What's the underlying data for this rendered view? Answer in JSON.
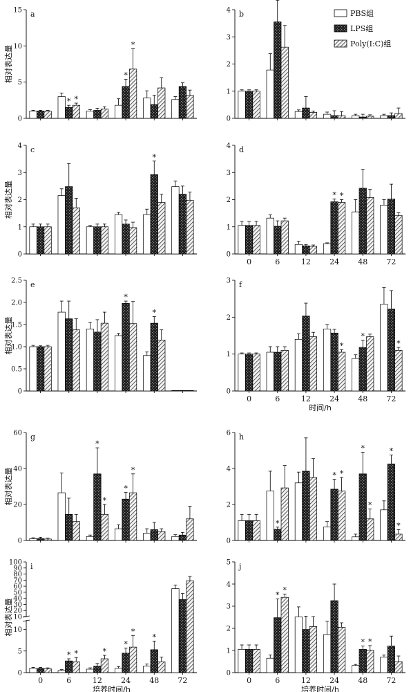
{
  "legend": {
    "items": [
      {
        "label": "PBS组",
        "pattern": "white"
      },
      {
        "label": "LPS组",
        "pattern": "dark"
      },
      {
        "label": "Poly(I:C)组",
        "pattern": "hatch"
      }
    ]
  },
  "ylabel": "相对表达量",
  "categories": [
    "0",
    "6",
    "12",
    "24",
    "48",
    "72"
  ],
  "chart_data": [
    {
      "panel": "a",
      "type": "bar",
      "ylim": [
        0,
        15
      ],
      "yticks": [
        0,
        5,
        10,
        15
      ],
      "ylabel": "相对表达量",
      "xlabel": "",
      "show_xticks": false,
      "series": [
        {
          "name": "PBS组",
          "values": [
            1.0,
            3.0,
            1.0,
            1.8,
            2.8,
            2.6
          ],
          "errors": [
            0.1,
            0.5,
            0.2,
            0.9,
            1.0,
            0.4
          ],
          "sig": [
            false,
            false,
            false,
            false,
            false,
            false
          ]
        },
        {
          "name": "LPS组",
          "values": [
            1.0,
            1.5,
            1.1,
            4.4,
            1.9,
            4.4
          ],
          "errors": [
            0.1,
            0.3,
            0.3,
            1.0,
            1.3,
            0.5
          ],
          "sig": [
            false,
            true,
            false,
            true,
            false,
            false
          ]
        },
        {
          "name": "Poly(I:C)组",
          "values": [
            1.0,
            1.8,
            1.3,
            6.8,
            4.2,
            3.2
          ],
          "errors": [
            0.1,
            0.3,
            0.3,
            2.8,
            1.4,
            0.7
          ],
          "sig": [
            false,
            true,
            false,
            true,
            false,
            false
          ]
        }
      ]
    },
    {
      "panel": "b",
      "type": "bar",
      "ylim": [
        0,
        4
      ],
      "yticks": [
        0,
        1,
        2,
        3,
        4
      ],
      "ylabel": "",
      "xlabel": "",
      "show_xticks": false,
      "series": [
        {
          "name": "PBS组",
          "values": [
            1.0,
            1.78,
            0.25,
            0.15,
            0.1,
            0.1
          ],
          "errors": [
            0.05,
            0.6,
            0.06,
            0.08,
            0.05,
            0.05
          ],
          "sig": [
            false,
            false,
            false,
            false,
            false,
            false
          ]
        },
        {
          "name": "LPS组",
          "values": [
            1.0,
            3.55,
            0.38,
            0.1,
            0.05,
            0.1
          ],
          "errors": [
            0.05,
            0.8,
            0.42,
            0.18,
            0.1,
            0.1
          ],
          "sig": [
            false,
            true,
            false,
            false,
            false,
            false
          ]
        },
        {
          "name": "Poly(I:C)组",
          "values": [
            1.0,
            2.62,
            0.22,
            0.1,
            0.08,
            0.18
          ],
          "errors": [
            0.05,
            0.8,
            0.05,
            0.15,
            0.05,
            0.2
          ],
          "sig": [
            false,
            false,
            false,
            false,
            false,
            false
          ]
        }
      ]
    },
    {
      "panel": "c",
      "type": "bar",
      "ylim": [
        0,
        4
      ],
      "yticks": [
        0,
        1,
        2,
        3,
        4
      ],
      "ylabel": "相对表达量",
      "xlabel": "",
      "show_xticks": false,
      "series": [
        {
          "name": "PBS组",
          "values": [
            1.0,
            2.15,
            1.0,
            1.45,
            1.45,
            2.48
          ],
          "errors": [
            0.1,
            0.25,
            0.05,
            0.08,
            0.2,
            0.2
          ],
          "sig": [
            false,
            false,
            false,
            false,
            false,
            false
          ]
        },
        {
          "name": "LPS组",
          "values": [
            1.0,
            2.48,
            1.0,
            1.1,
            2.92,
            2.2
          ],
          "errors": [
            0.1,
            0.85,
            0.1,
            0.15,
            0.5,
            0.3
          ],
          "sig": [
            false,
            false,
            false,
            false,
            true,
            false
          ]
        },
        {
          "name": "Poly(I:C)组",
          "values": [
            1.0,
            1.7,
            1.0,
            0.97,
            1.9,
            1.98
          ],
          "errors": [
            0.1,
            0.35,
            0.1,
            0.2,
            0.3,
            0.3
          ],
          "sig": [
            false,
            false,
            false,
            false,
            false,
            false
          ]
        }
      ]
    },
    {
      "panel": "d",
      "type": "bar",
      "ylim": [
        0,
        4
      ],
      "yticks": [
        0,
        1,
        2,
        3,
        4
      ],
      "ylabel": "",
      "xlabel": "",
      "show_xticks": true,
      "series": [
        {
          "name": "PBS组",
          "values": [
            1.05,
            1.32,
            0.35,
            0.38,
            1.55,
            1.8
          ],
          "errors": [
            0.15,
            0.12,
            0.12,
            0.03,
            0.45,
            0.2
          ],
          "sig": [
            false,
            false,
            false,
            false,
            false,
            false
          ]
        },
        {
          "name": "LPS组",
          "values": [
            1.05,
            1.02,
            0.3,
            1.92,
            2.42,
            2.02
          ],
          "errors": [
            0.15,
            0.2,
            0.05,
            0.1,
            0.7,
            0.55
          ],
          "sig": [
            false,
            false,
            false,
            true,
            false,
            false
          ]
        },
        {
          "name": "Poly(I:C)组",
          "values": [
            1.05,
            1.22,
            0.28,
            1.9,
            2.08,
            1.42
          ],
          "errors": [
            0.15,
            0.1,
            0.05,
            0.1,
            0.3,
            0.1
          ],
          "sig": [
            false,
            false,
            false,
            true,
            false,
            false
          ]
        }
      ]
    },
    {
      "panel": "e",
      "type": "bar",
      "ylim": [
        0,
        2.5
      ],
      "yticks": [
        0,
        0.5,
        1.0,
        1.5,
        2.0,
        2.5
      ],
      "ylabel": "相对表达量",
      "xlabel": "",
      "show_xticks": false,
      "series": [
        {
          "name": "PBS组",
          "values": [
            1.0,
            1.78,
            1.4,
            1.25,
            0.8,
            0.01
          ],
          "errors": [
            0.03,
            0.25,
            0.15,
            0.05,
            0.08,
            0.0
          ],
          "sig": [
            false,
            false,
            false,
            false,
            false,
            false
          ]
        },
        {
          "name": "LPS组",
          "values": [
            1.0,
            1.63,
            1.33,
            1.98,
            1.53,
            0.01
          ],
          "errors": [
            0.02,
            0.4,
            0.28,
            0.05,
            0.15,
            0.0
          ],
          "sig": [
            false,
            false,
            false,
            true,
            true,
            false
          ]
        },
        {
          "name": "Poly(I:C)组",
          "values": [
            1.0,
            1.38,
            1.53,
            1.52,
            1.15,
            0.01
          ],
          "errors": [
            0.03,
            0.25,
            0.25,
            0.5,
            0.23,
            0.0
          ],
          "sig": [
            false,
            false,
            false,
            false,
            false,
            false
          ]
        }
      ]
    },
    {
      "panel": "f",
      "type": "bar",
      "ylim": [
        0,
        3
      ],
      "yticks": [
        0,
        1,
        2,
        3
      ],
      "ylabel": "",
      "xlabel": "时间/h",
      "show_xticks": true,
      "series": [
        {
          "name": "PBS组",
          "values": [
            1.0,
            1.05,
            1.4,
            1.68,
            0.88,
            2.35
          ],
          "errors": [
            0.03,
            0.15,
            0.15,
            0.12,
            0.1,
            0.45
          ],
          "sig": [
            false,
            false,
            false,
            false,
            false,
            false
          ]
        },
        {
          "name": "LPS组",
          "values": [
            1.0,
            1.05,
            2.03,
            1.57,
            1.18,
            2.22
          ],
          "errors": [
            0.03,
            0.15,
            0.35,
            0.1,
            0.2,
            0.5
          ],
          "sig": [
            false,
            false,
            false,
            false,
            true,
            false
          ]
        },
        {
          "name": "Poly(I:C)组",
          "values": [
            1.0,
            1.1,
            1.47,
            1.05,
            1.47,
            1.1
          ],
          "errors": [
            0.03,
            0.1,
            0.12,
            0.07,
            0.07,
            0.08
          ],
          "sig": [
            false,
            false,
            false,
            true,
            false,
            true
          ]
        }
      ]
    },
    {
      "panel": "g",
      "type": "bar",
      "ylim": [
        0,
        60
      ],
      "yticks": [
        0,
        20,
        40,
        60
      ],
      "ylabel": "相对表达量",
      "xlabel": "",
      "show_xticks": false,
      "series": [
        {
          "name": "PBS组",
          "values": [
            1.0,
            26.5,
            2.2,
            6.5,
            4.0,
            2.2
          ],
          "errors": [
            0.5,
            11.0,
            0.8,
            2.2,
            2.5,
            1.0
          ],
          "sig": [
            false,
            false,
            false,
            false,
            false,
            false
          ]
        },
        {
          "name": "LPS组",
          "values": [
            1.0,
            14.5,
            37.0,
            23.0,
            6.0,
            3.0
          ],
          "errors": [
            0.8,
            9.0,
            14.5,
            3.8,
            4.0,
            1.5
          ],
          "sig": [
            false,
            false,
            true,
            true,
            false,
            false
          ]
        },
        {
          "name": "Poly(I:C)组",
          "values": [
            0.8,
            10.5,
            14.5,
            26.5,
            5.0,
            12.0
          ],
          "errors": [
            0.5,
            4.0,
            5.5,
            10.5,
            1.5,
            7.0
          ],
          "sig": [
            false,
            false,
            true,
            true,
            false,
            false
          ]
        }
      ]
    },
    {
      "panel": "h",
      "type": "bar",
      "ylim": [
        0,
        6
      ],
      "yticks": [
        0,
        2,
        4,
        6
      ],
      "ylabel": "",
      "xlabel": "",
      "show_xticks": false,
      "series": [
        {
          "name": "PBS组",
          "values": [
            1.1,
            2.75,
            3.2,
            0.75,
            0.2,
            1.7
          ],
          "errors": [
            0.35,
            1.1,
            0.6,
            0.3,
            0.15,
            0.5
          ],
          "sig": [
            false,
            false,
            false,
            false,
            false,
            false
          ]
        },
        {
          "name": "LPS组",
          "values": [
            1.1,
            0.62,
            3.85,
            2.85,
            3.7,
            4.25
          ],
          "errors": [
            0.35,
            0.12,
            1.85,
            0.55,
            1.2,
            0.5
          ],
          "sig": [
            false,
            true,
            false,
            true,
            true,
            true
          ]
        },
        {
          "name": "Poly(I:C)组",
          "values": [
            1.1,
            2.92,
            3.5,
            2.75,
            1.2,
            0.35
          ],
          "errors": [
            0.35,
            1.25,
            1.05,
            0.75,
            0.55,
            0.25
          ],
          "sig": [
            false,
            false,
            false,
            true,
            true,
            true
          ]
        }
      ]
    },
    {
      "panel": "i",
      "type": "bar",
      "broken_axis": true,
      "ylim_lower": [
        0,
        12
      ],
      "ylim_upper": [
        10,
        100
      ],
      "yticks": [
        "0",
        "5",
        "10",
        "10",
        "20",
        "30",
        "40",
        "50",
        "60",
        "70",
        "80",
        "90",
        "100"
      ],
      "ylabel": "相对表达量",
      "xlabel": "培养时间/h",
      "show_xticks": true,
      "series": [
        {
          "name": "PBS组",
          "values": [
            1.0,
            0.5,
            0.8,
            1.0,
            1.5,
            56.0
          ],
          "errors": [
            0.2,
            0.2,
            0.3,
            0.4,
            0.5,
            6.0
          ],
          "sig": [
            false,
            false,
            false,
            false,
            false,
            false
          ]
        },
        {
          "name": "LPS组",
          "values": [
            1.0,
            2.7,
            1.5,
            4.5,
            5.3,
            38.0
          ],
          "errors": [
            0.2,
            0.5,
            0.6,
            1.2,
            2.0,
            10.0
          ],
          "sig": [
            false,
            true,
            false,
            true,
            true,
            false
          ]
        },
        {
          "name": "Poly(I:C)组",
          "values": [
            0.9,
            2.5,
            3.2,
            5.9,
            2.5,
            69.0
          ],
          "errors": [
            0.2,
            1.0,
            0.8,
            2.7,
            1.1,
            7.0
          ],
          "sig": [
            false,
            true,
            true,
            true,
            false,
            false
          ]
        }
      ]
    },
    {
      "panel": "j",
      "type": "bar",
      "ylim": [
        0,
        5
      ],
      "yticks": [
        0,
        1,
        2,
        3,
        4,
        5
      ],
      "ylabel": "",
      "xlabel": "培养时间/h",
      "show_xticks": true,
      "series": [
        {
          "name": "PBS组",
          "values": [
            1.05,
            0.65,
            2.52,
            1.72,
            0.32,
            0.7
          ],
          "errors": [
            0.2,
            0.15,
            0.45,
            0.6,
            0.05,
            0.1
          ],
          "sig": [
            false,
            false,
            false,
            false,
            false,
            false
          ]
        },
        {
          "name": "LPS组",
          "values": [
            1.05,
            2.48,
            1.95,
            3.25,
            1.05,
            1.2
          ],
          "errors": [
            0.2,
            0.85,
            0.6,
            0.75,
            0.15,
            0.45
          ],
          "sig": [
            false,
            true,
            false,
            false,
            true,
            false
          ]
        },
        {
          "name": "Poly(I:C)组",
          "values": [
            1.05,
            3.4,
            2.08,
            2.05,
            1.02,
            0.5
          ],
          "errors": [
            0.2,
            0.15,
            0.45,
            0.2,
            0.2,
            0.25
          ],
          "sig": [
            false,
            true,
            false,
            false,
            true,
            false
          ]
        }
      ]
    }
  ]
}
